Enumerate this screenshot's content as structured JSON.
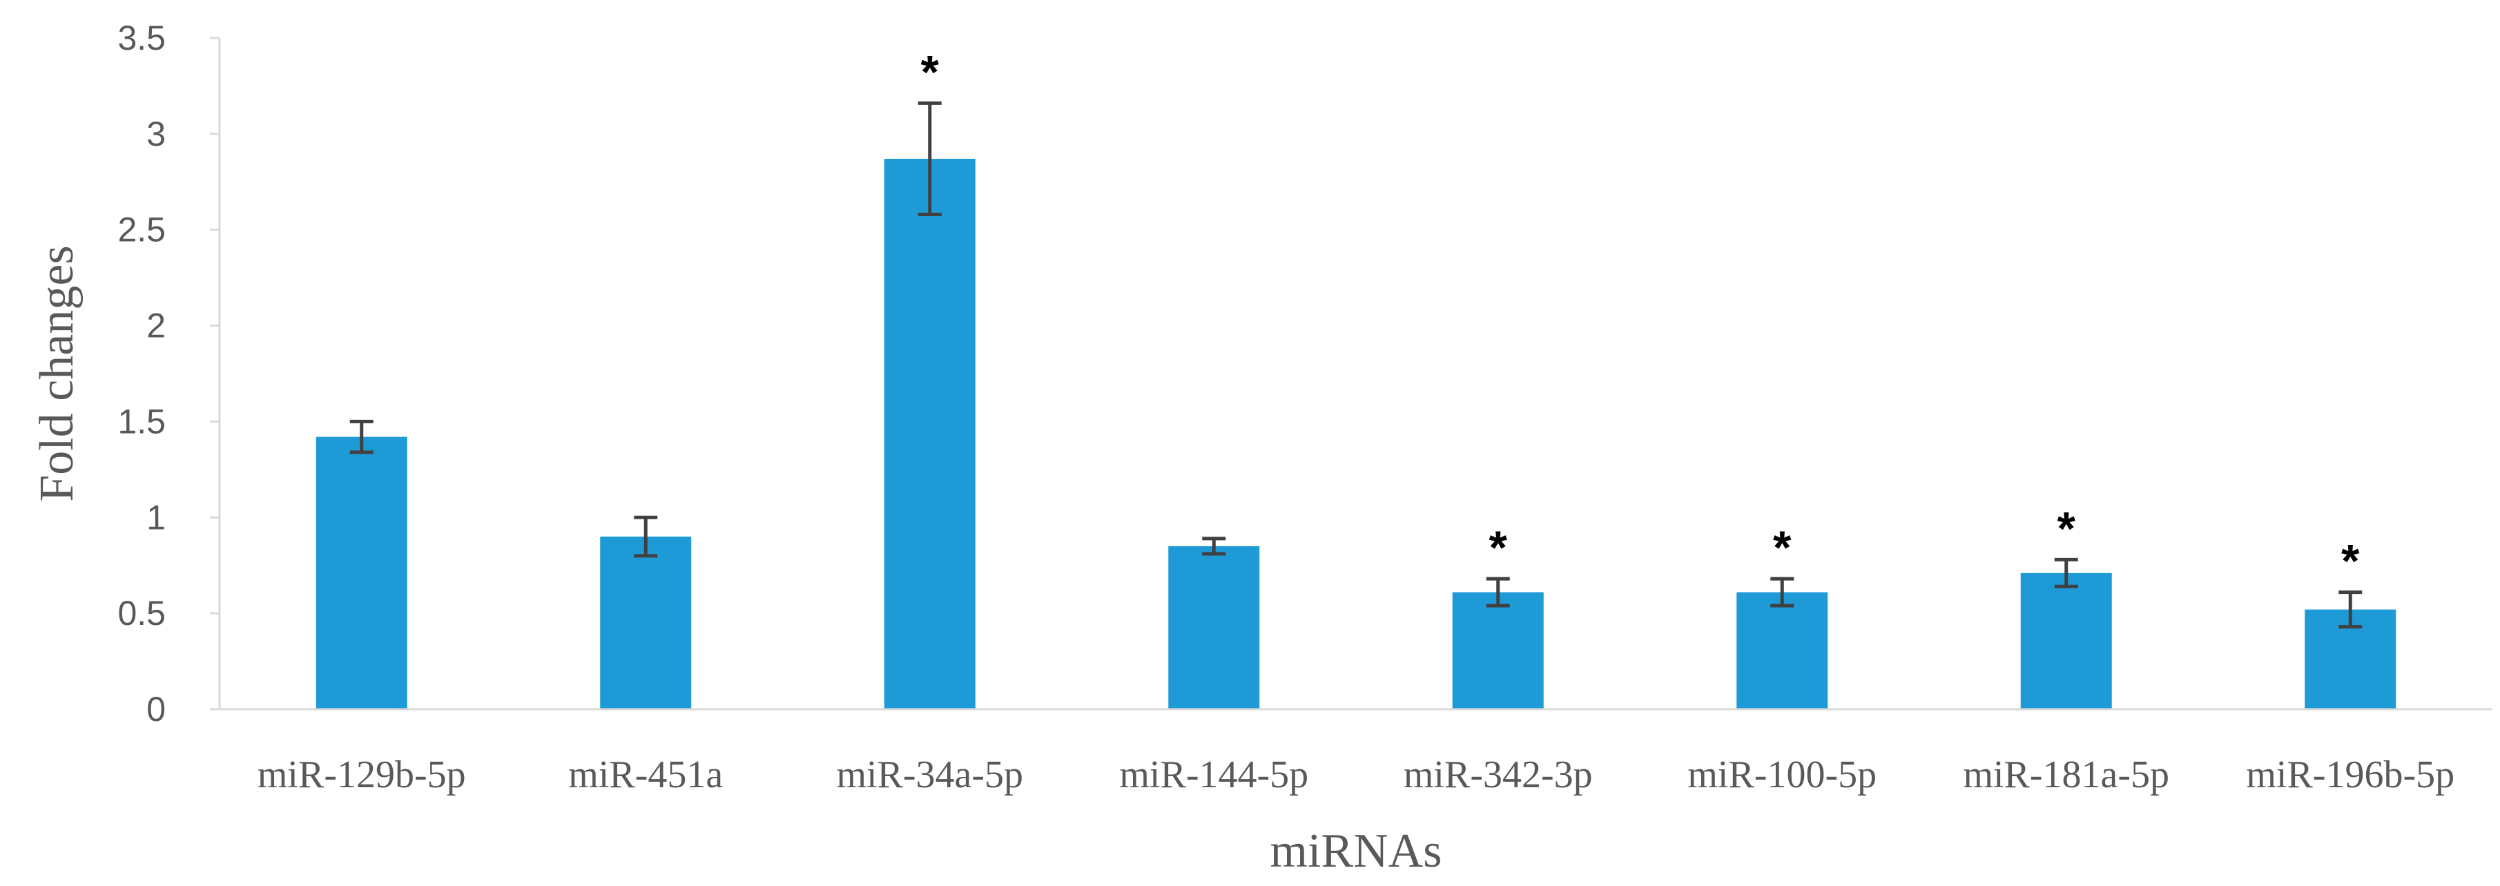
{
  "chart_data": {
    "type": "bar",
    "title": "",
    "xlabel": "miRNAs",
    "ylabel": "Fold changes",
    "ylim": [
      0,
      3.5
    ],
    "yticks": [
      "0",
      "0.5",
      "1",
      "1.5",
      "2",
      "2.5",
      "3",
      "3.5"
    ],
    "grid": false,
    "legend": "none",
    "bar_color": "#1E9BD7",
    "error_bar_color": "#404040",
    "categories": [
      "miR-129b-5p",
      "miR-451a",
      "miR-34a-5p",
      "miR-144-5p",
      "miR-342-3p",
      "miR-100-5p",
      "miR-181a-5p",
      "miR-196b-5p"
    ],
    "values": [
      1.42,
      0.9,
      2.87,
      0.85,
      0.61,
      0.61,
      0.71,
      0.52
    ],
    "error": [
      0.08,
      0.1,
      0.29,
      0.04,
      0.07,
      0.07,
      0.07,
      0.09
    ],
    "significance": [
      "",
      "",
      "*",
      "",
      "*",
      "*",
      "*",
      "*"
    ]
  }
}
